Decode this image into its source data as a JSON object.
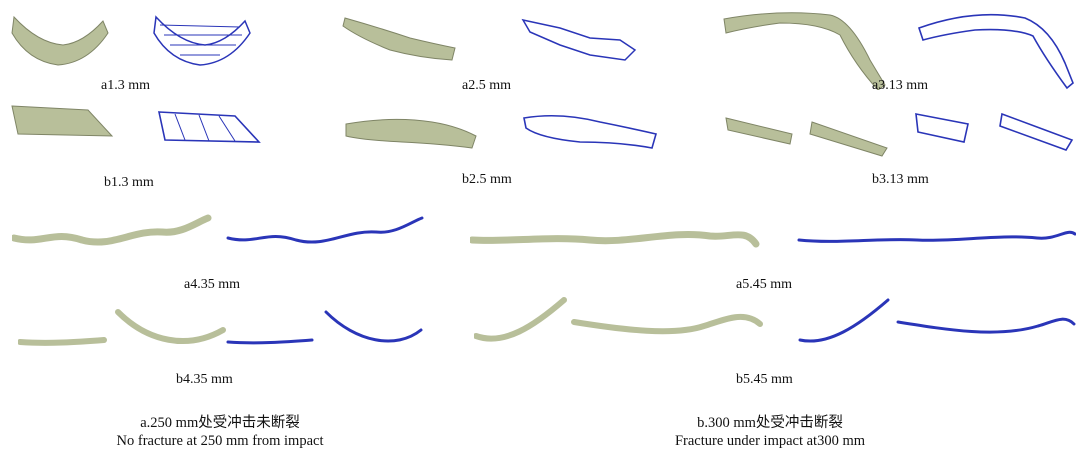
{
  "figure": {
    "panels": [
      {
        "id": "a1",
        "label": "a1.3 mm"
      },
      {
        "id": "a2",
        "label": "a2.5 mm"
      },
      {
        "id": "a3",
        "label": "a3.13 mm"
      },
      {
        "id": "b1",
        "label": "b1.3 mm"
      },
      {
        "id": "b2",
        "label": "b2.5 mm"
      },
      {
        "id": "b3",
        "label": "b3.13 mm"
      },
      {
        "id": "a4",
        "label": "a4.35 mm"
      },
      {
        "id": "a5",
        "label": "a5.45 mm"
      },
      {
        "id": "b4",
        "label": "b4.35 mm"
      },
      {
        "id": "b5",
        "label": "b5.45 mm"
      }
    ],
    "captions": {
      "left": {
        "line1": "a.250 mm处受冲击未断裂",
        "line2": "No fracture at 250 mm from impact"
      },
      "right": {
        "line1": "b.300 mm处受冲击断裂",
        "line2": "Fracture under impact at300 mm"
      }
    },
    "colors": {
      "particle": "#b8bf9a",
      "particle_edge": "#7f8566",
      "bond": "#2a35b8"
    }
  }
}
